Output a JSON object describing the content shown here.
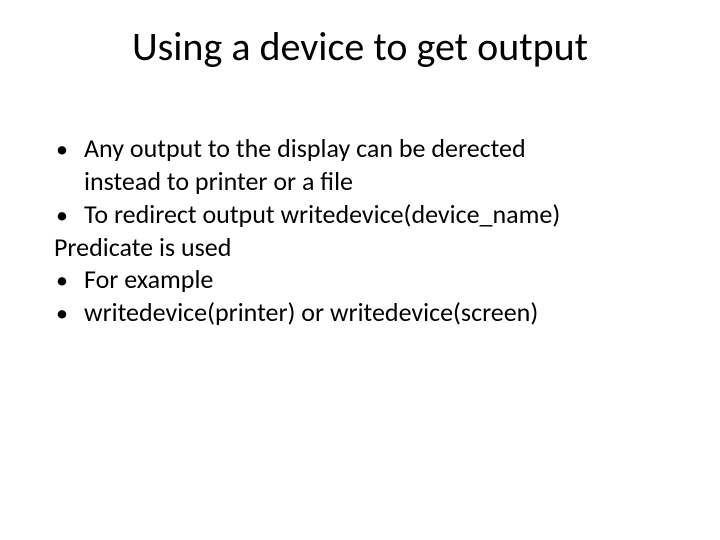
{
  "slide": {
    "title": "Using a device to get output",
    "title_fontsize": 40,
    "body_fontsize": 26,
    "text_color": "#000000",
    "background_color": "#ffffff",
    "lines": {
      "l1": "Any output to the display can be derected",
      "l1b": "instead to printer or a file",
      "l2": "To redirect output writedevice(device_name)",
      "l2b": "Predicate is used",
      "l3": "For example",
      "l4": "writedevice(printer) or writedevice(screen)"
    }
  }
}
